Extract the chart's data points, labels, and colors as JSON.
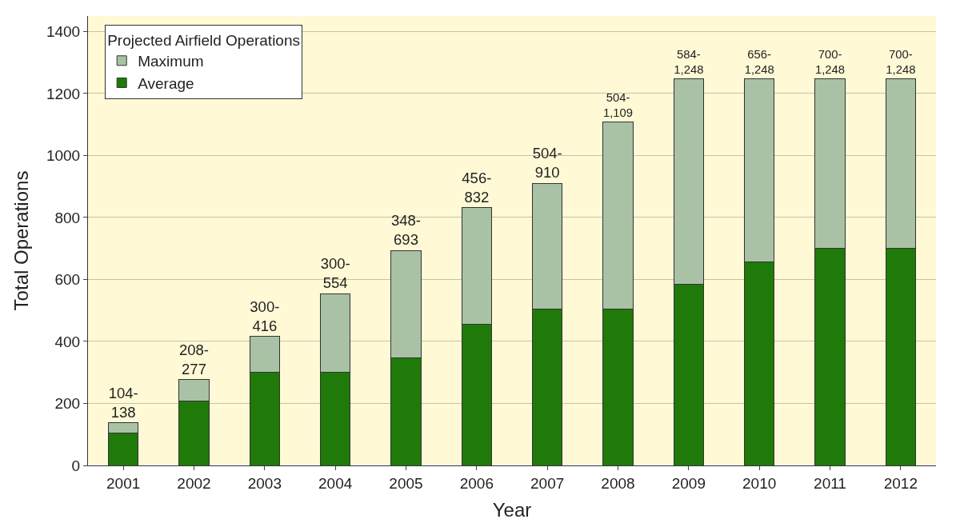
{
  "chart_data": {
    "type": "bar",
    "stacked": true,
    "xlabel": "Year",
    "ylabel": "Total Operations",
    "legend_title": "Projected Airfield Operations",
    "legend": "top left",
    "grid": "y",
    "categories": [
      "2001",
      "2002",
      "2003",
      "2004",
      "2005",
      "2006",
      "2007",
      "2008",
      "2009",
      "2010",
      "2011",
      "2012"
    ],
    "series": [
      {
        "name": "Average",
        "color": "#1f7a0a",
        "values": [
          104,
          208,
          300,
          300,
          348,
          456,
          504,
          504,
          584,
          656,
          700,
          700
        ]
      },
      {
        "name": "Maximum",
        "color": "#a9c2a5",
        "values": [
          34,
          69,
          116,
          254,
          345,
          376,
          406,
          605,
          664,
          592,
          548,
          548
        ],
        "value_labels": [
          "104-\n138",
          "208-\n277",
          "300-\n416",
          "300-\n554",
          "348-\n693",
          "456-\n832",
          "504-\n910",
          "504-\n1,109",
          "584-\n1,248",
          "656-\n1,248",
          "700-\n1,248",
          "700-\n1,248"
        ]
      }
    ],
    "ylim": [
      0,
      1450
    ],
    "yticks": [
      0,
      200,
      400,
      600,
      800,
      1000,
      1200,
      1400
    ]
  }
}
